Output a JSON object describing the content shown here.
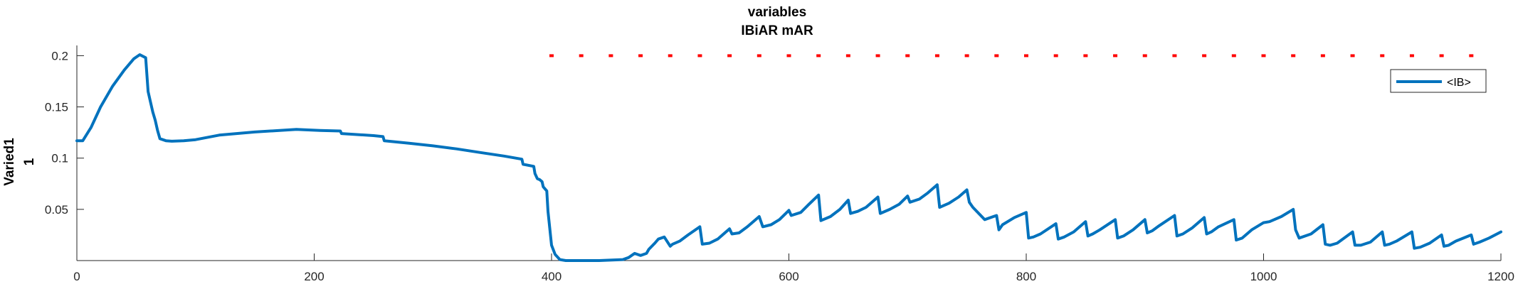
{
  "chart_data": {
    "type": "line",
    "title": [
      "variables",
      "IBiAR mAR"
    ],
    "ylabel": [
      "Varied1",
      "1"
    ],
    "xlabel": "",
    "xlim": [
      0,
      1200
    ],
    "ylim": [
      0,
      0.21
    ],
    "xticks": [
      0,
      200,
      400,
      600,
      800,
      1000,
      1200
    ],
    "yticks": [
      0.05,
      0.1,
      0.15,
      0.2
    ],
    "ytick_labels": [
      "0.05",
      "0.1",
      "0.15",
      "0.2"
    ],
    "grid": false,
    "legend": {
      "placement": "top-right",
      "entries": [
        "<IB>"
      ]
    },
    "colors": {
      "series": "#0072BD",
      "markers": "#FF0000",
      "axis": "#262626"
    },
    "series": [
      {
        "name": "<IB>",
        "style": "line",
        "x": [
          0,
          5,
          12,
          20,
          30,
          40,
          48,
          53,
          58,
          60,
          62,
          64,
          66,
          68,
          70,
          75,
          80,
          90,
          100,
          120,
          150,
          185,
          205,
          222,
          223,
          250,
          258,
          259,
          280,
          300,
          320,
          340,
          360,
          375,
          376,
          385,
          386,
          388,
          390,
          392,
          393,
          396,
          397,
          400,
          403,
          407,
          412,
          420,
          440,
          460,
          465,
          470,
          475,
          480,
          482,
          487,
          490,
          495,
          500,
          502,
          508,
          515,
          525,
          527,
          533,
          540,
          550,
          552,
          558,
          565,
          575,
          578,
          585,
          592,
          600,
          602,
          610,
          617,
          625,
          627,
          635,
          643,
          650,
          652,
          658,
          665,
          675,
          677,
          685,
          693,
          700,
          702,
          710,
          717,
          725,
          727,
          735,
          743,
          750,
          752,
          755,
          765,
          775,
          777,
          780,
          790,
          800,
          802,
          806,
          812,
          825,
          827,
          832,
          840,
          850,
          852,
          856,
          862,
          875,
          877,
          882,
          890,
          900,
          902,
          906,
          912,
          925,
          927,
          932,
          940,
          950,
          952,
          956,
          962,
          975,
          977,
          982,
          990,
          1000,
          1005,
          1015,
          1025,
          1027,
          1030,
          1040,
          1050,
          1052,
          1056,
          1062,
          1075,
          1077,
          1082,
          1090,
          1100,
          1102,
          1106,
          1112,
          1125,
          1127,
          1132,
          1140,
          1150,
          1152,
          1156,
          1162,
          1175,
          1177,
          1182,
          1190,
          1200
        ],
        "y": [
          0.117,
          0.117,
          0.13,
          0.15,
          0.17,
          0.186,
          0.197,
          0.201,
          0.198,
          0.165,
          0.155,
          0.145,
          0.137,
          0.127,
          0.119,
          0.117,
          0.1165,
          0.117,
          0.118,
          0.1225,
          0.1255,
          0.128,
          0.127,
          0.1265,
          0.124,
          0.122,
          0.121,
          0.117,
          0.1145,
          0.112,
          0.109,
          0.1055,
          0.102,
          0.099,
          0.094,
          0.092,
          0.085,
          0.08,
          0.079,
          0.077,
          0.072,
          0.068,
          0.048,
          0.015,
          0.006,
          0.001,
          0.0,
          0.0,
          0.0,
          0.001,
          0.003,
          0.007,
          0.005,
          0.007,
          0.011,
          0.017,
          0.021,
          0.023,
          0.014,
          0.016,
          0.019,
          0.025,
          0.033,
          0.016,
          0.017,
          0.021,
          0.031,
          0.026,
          0.027,
          0.033,
          0.043,
          0.033,
          0.035,
          0.04,
          0.049,
          0.044,
          0.047,
          0.055,
          0.064,
          0.039,
          0.043,
          0.05,
          0.059,
          0.046,
          0.048,
          0.052,
          0.062,
          0.046,
          0.05,
          0.055,
          0.063,
          0.057,
          0.06,
          0.066,
          0.074,
          0.052,
          0.056,
          0.062,
          0.069,
          0.057,
          0.052,
          0.04,
          0.044,
          0.03,
          0.035,
          0.042,
          0.047,
          0.022,
          0.023,
          0.026,
          0.036,
          0.021,
          0.023,
          0.028,
          0.038,
          0.024,
          0.026,
          0.03,
          0.04,
          0.022,
          0.024,
          0.03,
          0.04,
          0.027,
          0.029,
          0.034,
          0.044,
          0.024,
          0.026,
          0.032,
          0.042,
          0.026,
          0.028,
          0.033,
          0.04,
          0.02,
          0.022,
          0.03,
          0.037,
          0.038,
          0.043,
          0.05,
          0.03,
          0.022,
          0.026,
          0.035,
          0.016,
          0.015,
          0.017,
          0.028,
          0.015,
          0.015,
          0.018,
          0.028,
          0.015,
          0.016,
          0.019,
          0.028,
          0.012,
          0.013,
          0.017,
          0.025,
          0.014,
          0.015,
          0.019,
          0.025,
          0.016,
          0.018,
          0.022,
          0.028
        ]
      },
      {
        "style": "markers",
        "x": [
          400,
          425,
          450,
          475,
          500,
          525,
          550,
          575,
          600,
          625,
          650,
          675,
          700,
          725,
          750,
          775,
          800,
          825,
          850,
          875,
          900,
          925,
          950,
          975,
          1000,
          1025,
          1050,
          1075,
          1100,
          1125,
          1150,
          1175
        ],
        "y": [
          0.2,
          0.2,
          0.2,
          0.2,
          0.2,
          0.2,
          0.2,
          0.2,
          0.2,
          0.2,
          0.2,
          0.2,
          0.2,
          0.2,
          0.2,
          0.2,
          0.2,
          0.2,
          0.2,
          0.2,
          0.2,
          0.2,
          0.2,
          0.2,
          0.2,
          0.2,
          0.2,
          0.2,
          0.2,
          0.2,
          0.2,
          0.2
        ]
      }
    ]
  }
}
